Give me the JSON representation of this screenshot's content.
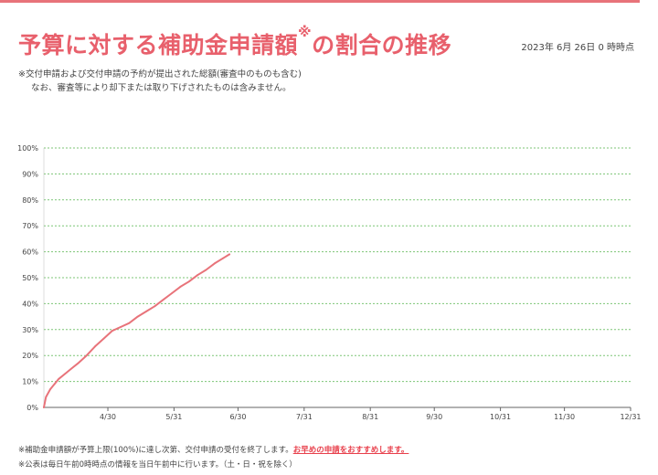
{
  "header": {
    "title": "予算に対する補助金申請額",
    "title_mark": "※",
    "title_suffix": "の割合の推移",
    "as_of": "2023年 6月 26日 0 時時点"
  },
  "notes": {
    "line1": "※交付申請および交付申請の予約が提出された総額(審査中のものも含む)",
    "line2": "なお、審査等により却下または取り下げされたものは含みません。"
  },
  "footer": {
    "line1": "※補助金申請額が予算上限(100%)に達し次第、交付申請の受付を終了します。",
    "line1_cta": "お早めの申請をおすすめします。",
    "line2": "※公表は毎日午前0時時点の情報を当日午前中に行います。（土・日・祝を除く）"
  },
  "colors": {
    "accent": "#e8606c",
    "series": "#e8737a",
    "grid": "#7cc576"
  },
  "chart_data": {
    "type": "line",
    "x_type": "date",
    "xlim": [
      "2023-03-31",
      "2023-12-31"
    ],
    "x_ticks": [
      "2023-04-30",
      "2023-05-31",
      "2023-06-30",
      "2023-07-31",
      "2023-08-31",
      "2023-09-30",
      "2023-10-31",
      "2023-11-30",
      "2023-12-31"
    ],
    "x_tick_labels": [
      "4/30",
      "5/31",
      "6/30",
      "7/31",
      "8/31",
      "9/30",
      "10/31",
      "11/30",
      "12/31"
    ],
    "y_ticks": [
      0,
      10,
      20,
      30,
      40,
      50,
      60,
      70,
      80,
      90,
      100
    ],
    "y_tick_labels": [
      "0%",
      "10%",
      "20%",
      "30%",
      "40%",
      "50%",
      "60%",
      "70%",
      "80%",
      "90%",
      "100%"
    ],
    "ylim": [
      0,
      100
    ],
    "grid": "horizontal dotted",
    "series": [
      {
        "x": [
          "2023-03-31",
          "2023-04-01",
          "2023-04-03",
          "2023-04-05",
          "2023-04-07",
          "2023-04-10",
          "2023-04-13",
          "2023-04-16",
          "2023-04-20",
          "2023-04-24",
          "2023-04-28",
          "2023-05-02",
          "2023-05-06",
          "2023-05-10",
          "2023-05-14",
          "2023-05-18",
          "2023-05-22",
          "2023-05-26",
          "2023-05-30",
          "2023-06-03",
          "2023-06-07",
          "2023-06-11",
          "2023-06-15",
          "2023-06-19",
          "2023-06-23",
          "2023-06-26"
        ],
        "y": [
          0,
          4,
          7,
          9,
          11,
          13,
          15,
          17,
          20,
          23.5,
          26.5,
          29.5,
          31,
          32.5,
          35,
          37,
          39,
          41.5,
          44,
          46.5,
          48.5,
          51,
          53,
          55.5,
          57.5,
          59
        ]
      }
    ]
  }
}
